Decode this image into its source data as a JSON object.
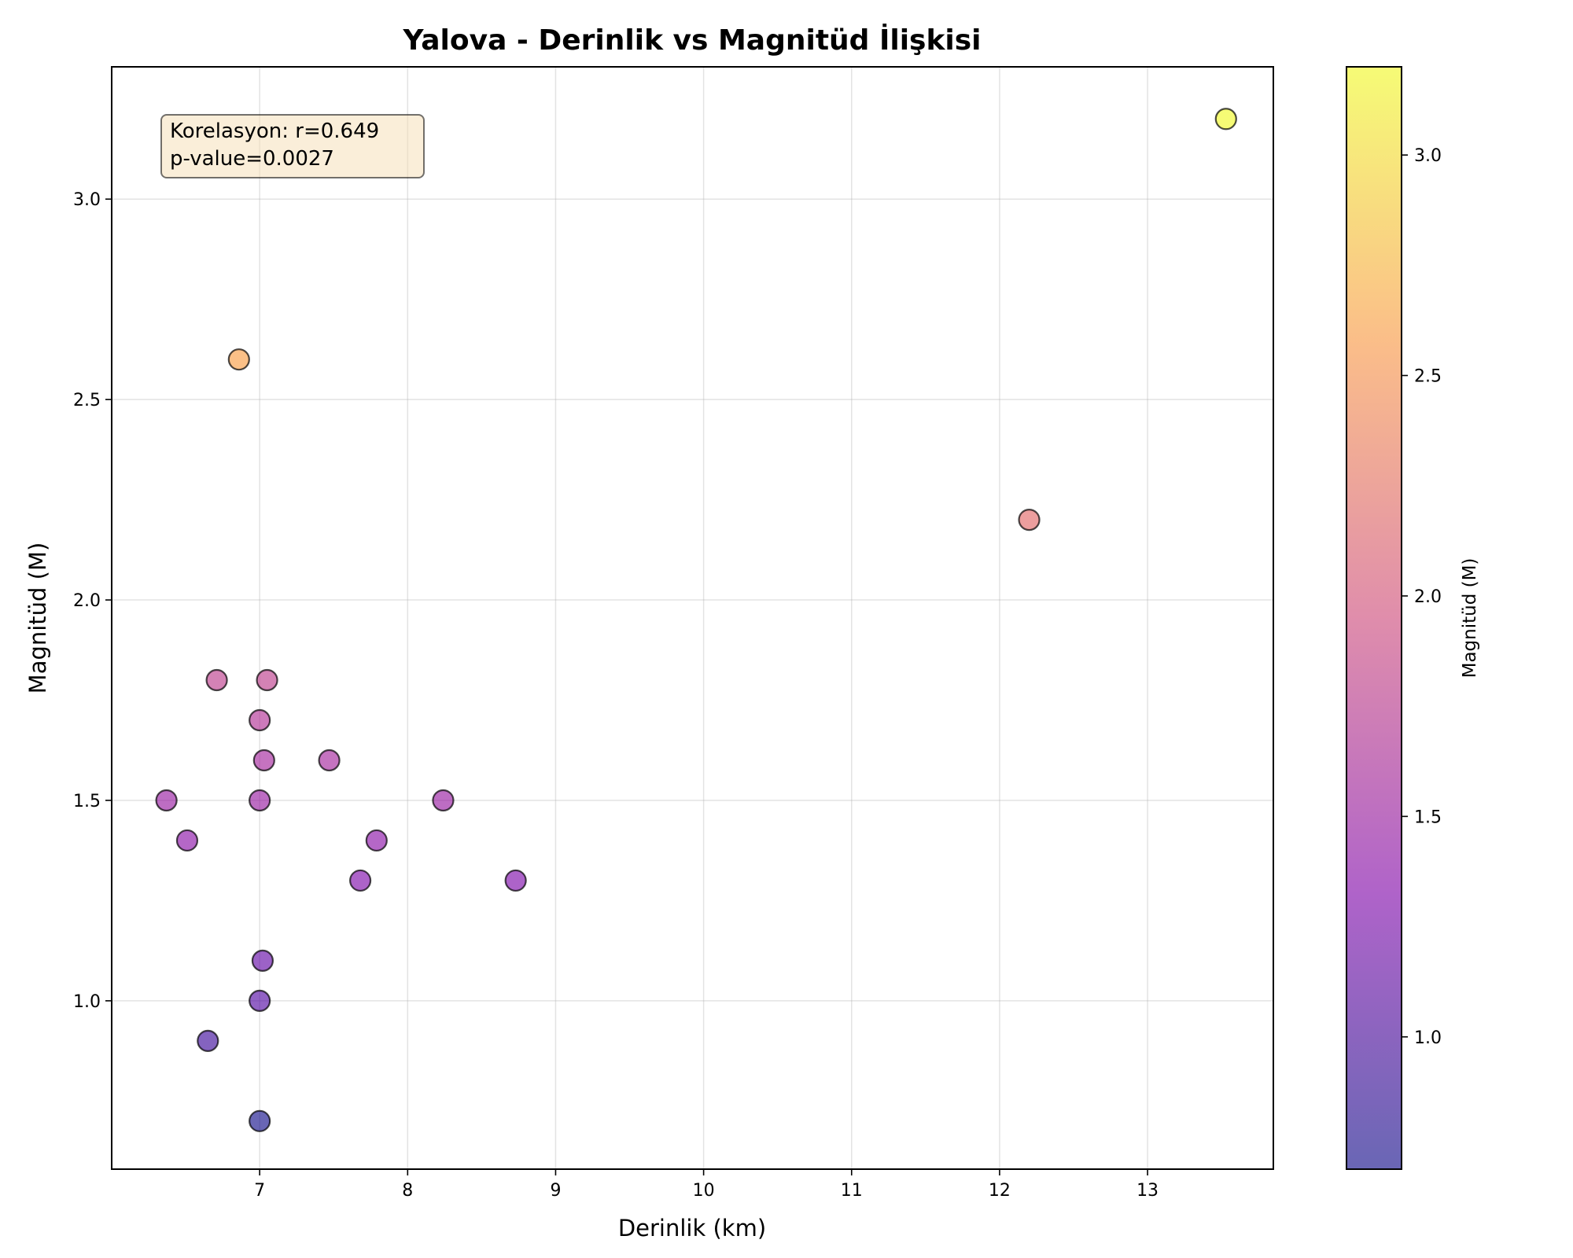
{
  "chart_data": {
    "type": "scatter",
    "title": "Yalova - Derinlik vs Magnitüd İlişkisi",
    "xlabel": "Derinlik (km)",
    "ylabel": "Magnitüd (M)",
    "xlim": [
      6.0,
      13.85
    ],
    "ylim": [
      0.58,
      3.33
    ],
    "xticks": [
      7,
      8,
      9,
      10,
      11,
      12,
      13
    ],
    "yticks": [
      1.0,
      1.5,
      2.0,
      2.5,
      3.0
    ],
    "grid": true,
    "colormap": "plasma",
    "colorbar": {
      "label": "Magnitüd (M)",
      "range": [
        0.7,
        3.2
      ],
      "ticks": [
        1.0,
        1.5,
        2.0,
        2.5,
        3.0
      ]
    },
    "annotation": {
      "line1": "Korelasyon: r=0.649",
      "line2": "p-value=0.0027"
    },
    "points": [
      {
        "x": 13.53,
        "y": 3.2
      },
      {
        "x": 6.86,
        "y": 2.6
      },
      {
        "x": 12.2,
        "y": 2.2
      },
      {
        "x": 6.71,
        "y": 1.8
      },
      {
        "x": 7.05,
        "y": 1.8
      },
      {
        "x": 7.0,
        "y": 1.7
      },
      {
        "x": 7.03,
        "y": 1.6
      },
      {
        "x": 7.47,
        "y": 1.6
      },
      {
        "x": 6.37,
        "y": 1.5
      },
      {
        "x": 7.0,
        "y": 1.5
      },
      {
        "x": 8.24,
        "y": 1.5
      },
      {
        "x": 6.51,
        "y": 1.4
      },
      {
        "x": 7.79,
        "y": 1.4
      },
      {
        "x": 7.68,
        "y": 1.3
      },
      {
        "x": 8.73,
        "y": 1.3
      },
      {
        "x": 7.02,
        "y": 1.1
      },
      {
        "x": 7.0,
        "y": 1.0
      },
      {
        "x": 6.65,
        "y": 0.9
      },
      {
        "x": 7.0,
        "y": 0.7
      }
    ]
  }
}
